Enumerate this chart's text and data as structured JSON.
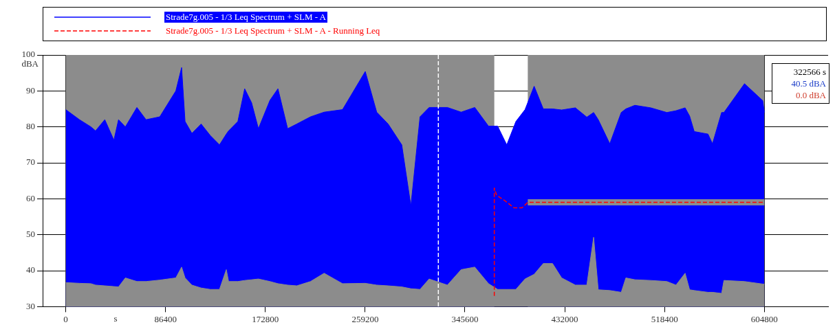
{
  "chart_data": {
    "type": "area",
    "xlabel": "s",
    "ylabel": "dBA",
    "annotations": [
      "322566 s",
      "40.5 dBA",
      "0.0 dBA"
    ],
    "xlim": [
      -20000,
      660000
    ],
    "ylim": [
      30,
      100
    ],
    "xticks": [
      0,
      86400,
      172800,
      259200,
      345600,
      432000,
      518400,
      604800
    ],
    "yticks": [
      30,
      40,
      50,
      60,
      70,
      80,
      90,
      100
    ],
    "grid": true,
    "legend": "top",
    "ref_lines": [
      {
        "axis": "x",
        "value": 322566,
        "color": "#ffffff",
        "line_style": "dashed"
      }
    ],
    "bands": [
      {
        "axis": "x",
        "from": 0,
        "to": 371000,
        "color": "#8c8c8c"
      },
      {
        "axis": "x",
        "from": 400000,
        "to": 604800,
        "color": "#8c8c8c"
      }
    ],
    "series": [
      {
        "name": "Strade7g.005 - 1/3 Leq Spectrum + SLM - A",
        "color": "#0000ff",
        "x": [
          0,
          11900,
          21800,
          25800,
          33800,
          41700,
          45700,
          51600,
          61600,
          69500,
          81400,
          95300,
          100300,
          103300,
          109200,
          117200,
          125100,
          133100,
          139000,
          141000,
          149000,
          154900,
          160900,
          166800,
          176800,
          183700,
          192100,
          200000,
          211900,
          223700,
          239600,
          259300,
          269200,
          279100,
          290900,
          298800,
          306700,
          314600,
          330400,
          342300,
          354100,
          366000,
          373900,
          381800,
          389700,
          397600,
          405500,
          413400,
          421400,
          429300,
          441200,
          451100,
          457000,
          461000,
          471000,
          480900,
          484900,
          492700,
          506500,
          520400,
          528300,
          536200,
          540100,
          544100,
          556000,
          559900,
          567800,
          569800,
          587600,
          603400,
          604800
        ],
        "values": [
          84.8,
          82,
          80,
          78.9,
          82,
          76.3,
          82,
          80,
          85.4,
          82,
          82.8,
          90,
          96.5,
          81.5,
          78.2,
          80.8,
          77.6,
          75,
          78,
          78.9,
          81.5,
          90.6,
          86.7,
          79.5,
          87.4,
          90.6,
          79.5,
          80.8,
          82.8,
          84.1,
          84.8,
          95.4,
          84.1,
          80.8,
          75,
          58,
          82.8,
          85.4,
          85.4,
          84.1,
          85.4,
          80.2,
          80.2,
          75,
          81.5,
          84.8,
          91.3,
          85,
          85,
          84.7,
          85.3,
          82.7,
          84,
          82,
          75.3,
          84,
          85,
          86,
          85.3,
          84,
          84.5,
          85.3,
          83,
          78.7,
          78,
          75.3,
          84,
          84,
          92,
          87.3,
          84
        ]
      },
      {
        "color": "#8c8c8c",
        "x": [
          0,
          11900,
          21800,
          25800,
          33800,
          41700,
          45700,
          51600,
          61600,
          69500,
          81400,
          95300,
          100300,
          103300,
          109200,
          117200,
          125100,
          133100,
          139000,
          141000,
          149000,
          154900,
          160900,
          166800,
          176800,
          183700,
          192100,
          200000,
          211900,
          223700,
          239600,
          259300,
          269200,
          279100,
          290900,
          298800,
          306700,
          314600,
          330400,
          342300,
          354100,
          366000,
          373900,
          381800,
          389700,
          397600,
          405500,
          413400,
          421400,
          429300,
          441200,
          451100,
          457000,
          461000,
          471000,
          480900,
          484900,
          492700,
          506500,
          520400,
          528300,
          536200,
          540100,
          544100,
          556000,
          559900,
          567800,
          569800,
          587600,
          603400,
          604800
        ],
        "values": [
          36.7,
          36.5,
          36.4,
          36,
          35.8,
          35.6,
          35.5,
          38,
          37,
          37,
          37.4,
          38,
          41,
          38,
          36,
          35.2,
          34.8,
          34.8,
          40.3,
          37,
          37,
          37.3,
          37.5,
          37.7,
          37,
          36.4,
          36,
          35.8,
          37,
          39.3,
          36.4,
          36.5,
          36,
          35.8,
          35.5,
          35,
          34.8,
          37.7,
          36,
          40.3,
          41,
          36.4,
          34.8,
          34.8,
          34.8,
          37.7,
          39,
          42,
          42,
          38,
          36,
          36,
          49.3,
          34.7,
          34.5,
          34,
          38,
          37.5,
          37.3,
          37,
          36,
          39.3,
          34.7,
          34.5,
          34,
          34,
          33.7,
          37.3,
          37,
          36.3,
          36.3
        ]
      },
      {
        "type": "line",
        "color": "#8c8c8c",
        "x": [
          400000,
          604800
        ],
        "values": [
          59,
          59
        ]
      },
      {
        "type": "line",
        "name": "Strade7g.005 - 1/3 Leq Spectrum + SLM - A - Running Leq",
        "color": "#ff0000",
        "line_style": "dashed",
        "x": [
          371000,
          371000,
          373000,
          380000,
          388000,
          395000,
          400000,
          604800
        ],
        "values": [
          33,
          63,
          61,
          59.5,
          57.5,
          57.5,
          59,
          59
        ]
      }
    ]
  }
}
